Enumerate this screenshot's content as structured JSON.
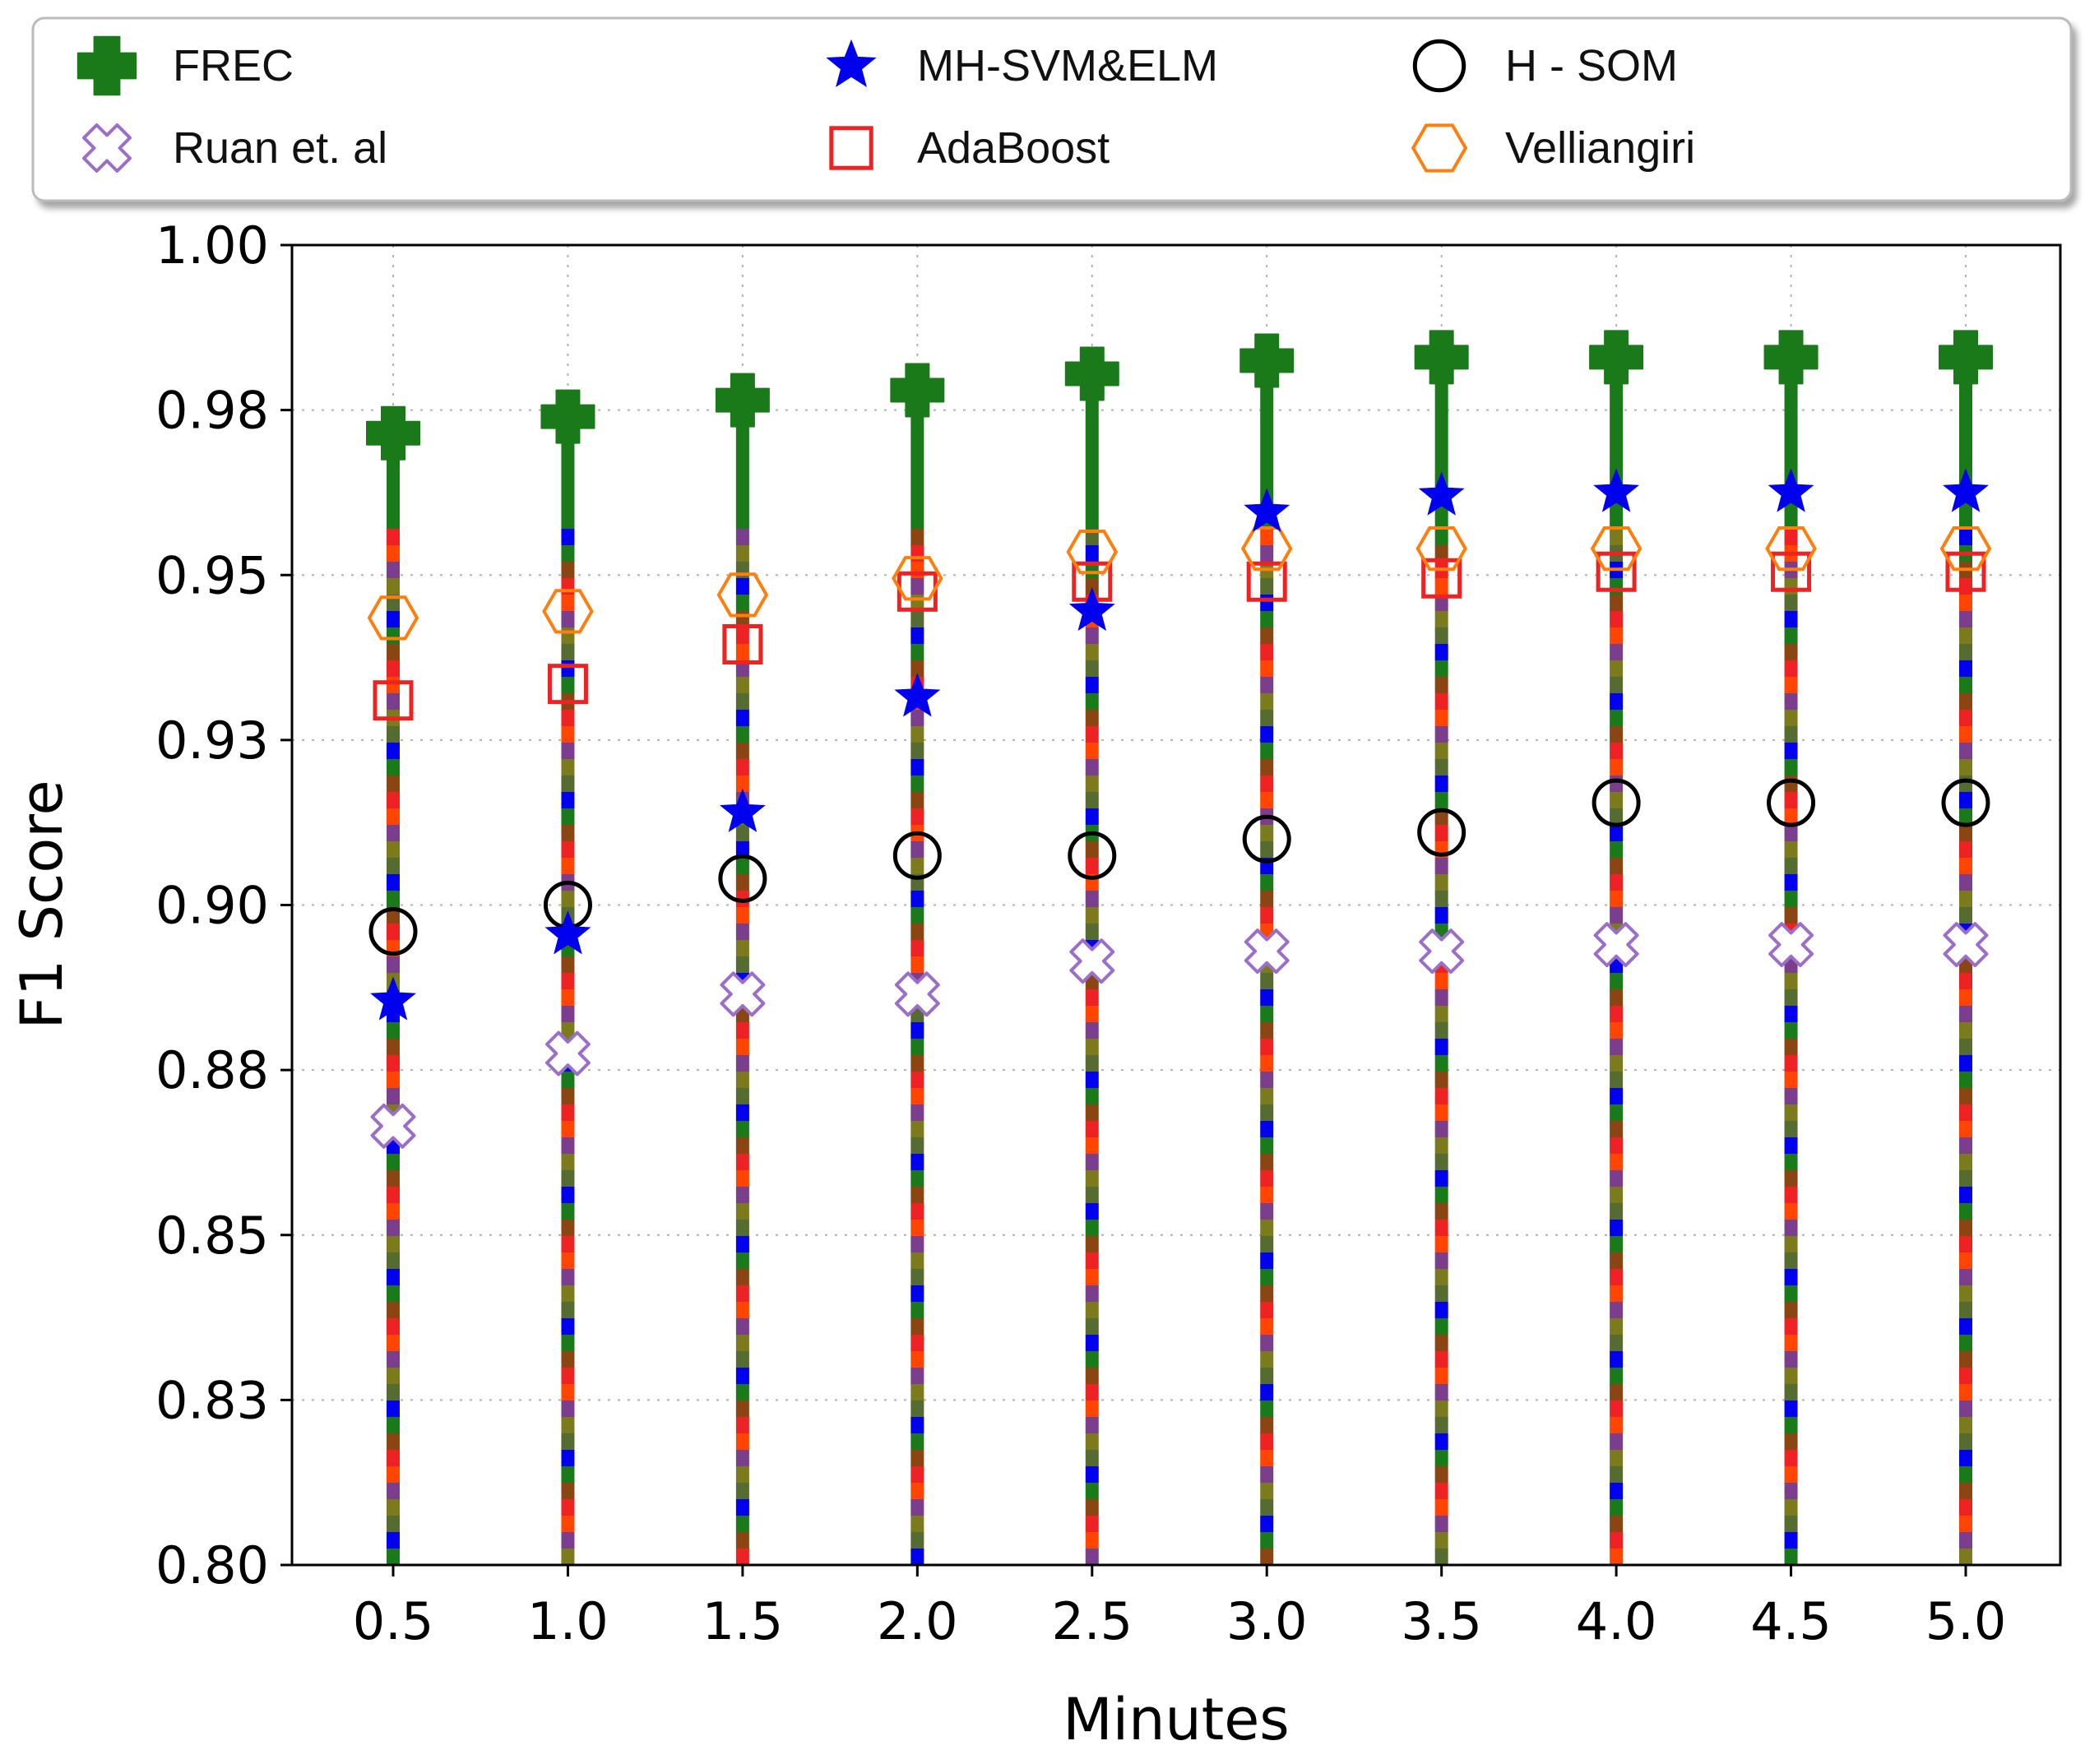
{
  "chart_data": {
    "type": "scatter",
    "title": "",
    "xlabel": "Minutes",
    "ylabel": "F1 Score",
    "x": [
      0.5,
      1.0,
      1.5,
      2.0,
      2.5,
      3.0,
      3.5,
      4.0,
      4.5,
      5.0
    ],
    "x_tick_labels": [
      "0.5",
      "1.0",
      "1.5",
      "2.0",
      "2.5",
      "3.0",
      "3.5",
      "4.0",
      "4.5",
      "5.0"
    ],
    "ylim": [
      0.8,
      1.0
    ],
    "y_ticks": [
      0.8,
      0.825,
      0.85,
      0.875,
      0.9,
      0.925,
      0.95,
      0.975,
      1.0
    ],
    "y_tick_labels": [
      "0.80",
      "0.83",
      "0.85",
      "0.88",
      "0.90",
      "0.93",
      "0.95",
      "0.98",
      "1.00"
    ],
    "grid": true,
    "legend_position": "top",
    "series": [
      {
        "name": "FREC",
        "marker": "plus",
        "color": "#1a7a1a",
        "values": [
          0.9715,
          0.974,
          0.9765,
          0.978,
          0.9805,
          0.9825,
          0.983,
          0.983,
          0.983,
          0.983
        ]
      },
      {
        "name": "Ruan et. al",
        "marker": "x",
        "color": "#9b6fc8",
        "values": [
          0.8665,
          0.8775,
          0.8865,
          0.8865,
          0.8915,
          0.893,
          0.893,
          0.894,
          0.894,
          0.894
        ]
      },
      {
        "name": "MH-SVM&ELM",
        "marker": "star",
        "color": "#0000ee",
        "values": [
          0.8855,
          0.8955,
          0.914,
          0.9315,
          0.9445,
          0.9595,
          0.962,
          0.9625,
          0.9625,
          0.9625
        ]
      },
      {
        "name": "AdaBoost",
        "marker": "square",
        "color": "#ee2222",
        "values": [
          0.931,
          0.9335,
          0.9395,
          0.9475,
          0.949,
          0.949,
          0.9495,
          0.9505,
          0.9505,
          0.9505
        ]
      },
      {
        "name": "H - SOM",
        "marker": "circle",
        "color": "#000000",
        "values": [
          0.896,
          0.9,
          0.904,
          0.9075,
          0.9075,
          0.91,
          0.911,
          0.9155,
          0.9155,
          0.9155
        ]
      },
      {
        "name": "Velliangiri",
        "marker": "hexagon",
        "color": "#ff7f0e",
        "values": [
          0.9435,
          0.9445,
          0.947,
          0.9495,
          0.9535,
          0.954,
          0.954,
          0.954,
          0.954,
          0.954
        ]
      }
    ]
  },
  "stem_palette": [
    "#1a7a1a",
    "#7b7b1e",
    "#ee2222",
    "#0000ee",
    "#7a3e8c",
    "#8b4513",
    "#556b2f",
    "#ff4500"
  ]
}
